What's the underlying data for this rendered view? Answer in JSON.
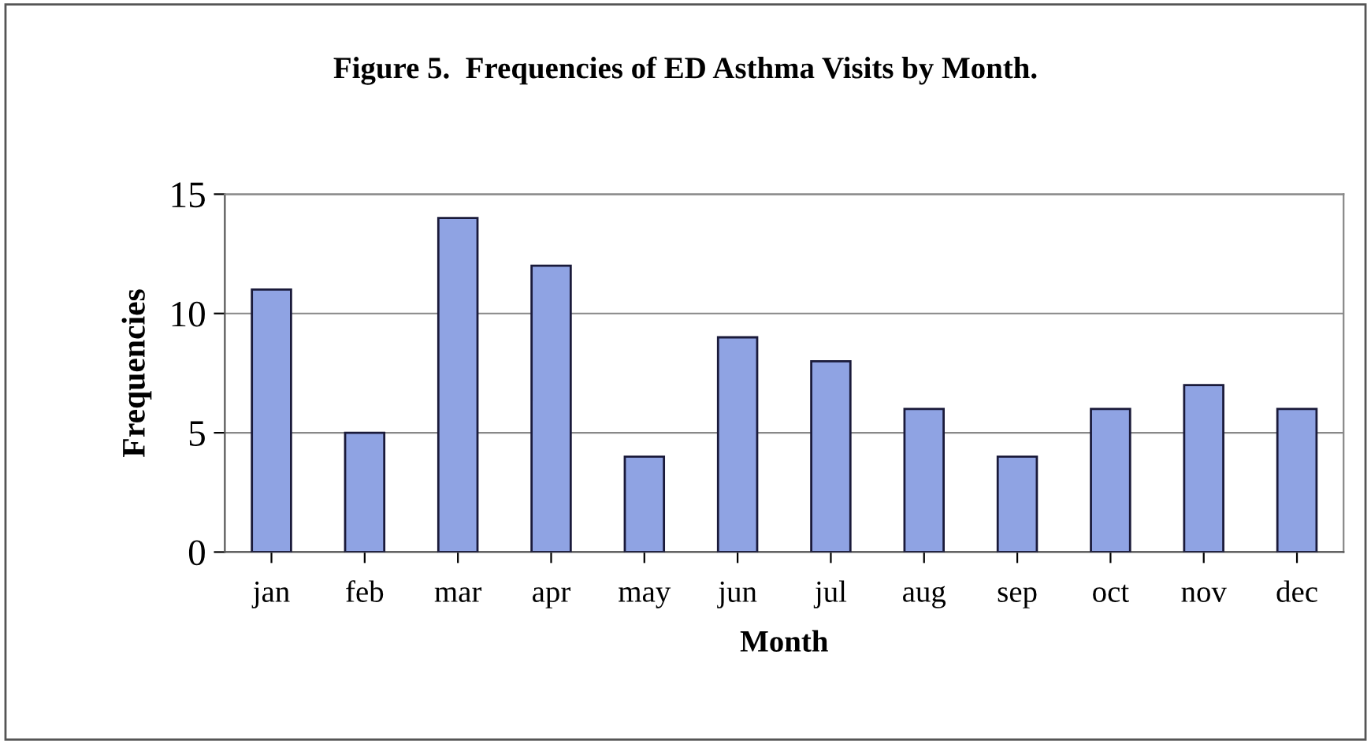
{
  "chart_data": {
    "type": "bar",
    "title": "Figure 5.  Frequencies of ED Asthma Visits by Month.",
    "xlabel": "Month",
    "ylabel": "Frequencies",
    "categories": [
      "jan",
      "feb",
      "mar",
      "apr",
      "may",
      "jun",
      "jul",
      "aug",
      "sep",
      "oct",
      "nov",
      "dec"
    ],
    "values": [
      11,
      5,
      14,
      12,
      4,
      9,
      8,
      6,
      4,
      6,
      7,
      6
    ],
    "color": "#8fa3e3",
    "ylim": [
      0,
      15
    ],
    "yticks": [
      0,
      5,
      10,
      15
    ],
    "grid": "y",
    "legend": false
  }
}
